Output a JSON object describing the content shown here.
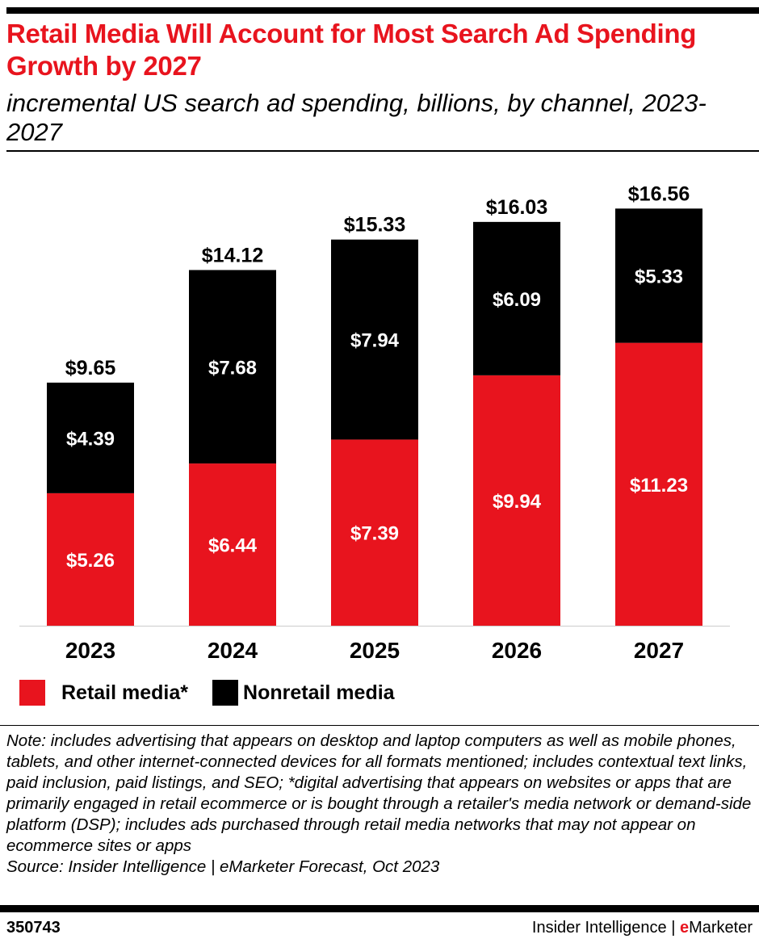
{
  "title": "Retail Media Will Account for Most Search Ad Spending Growth by 2027",
  "subtitle": "incremental US search ad spending, billions, by channel, 2023-2027",
  "colors": {
    "retail": "#e8141e",
    "nonretail": "#000000",
    "title": "#e8141e"
  },
  "chart_data": {
    "type": "bar",
    "stacked": true,
    "categories": [
      "2023",
      "2024",
      "2025",
      "2026",
      "2027"
    ],
    "series": [
      {
        "name": "Retail media*",
        "color": "#e8141e",
        "values": [
          5.26,
          6.44,
          7.39,
          9.94,
          11.23
        ],
        "labels": [
          "$5.26",
          "$6.44",
          "$7.39",
          "$9.94",
          "$11.23"
        ]
      },
      {
        "name": "Nonretail media",
        "color": "#000000",
        "values": [
          4.39,
          7.68,
          7.94,
          6.09,
          5.33
        ],
        "labels": [
          "$4.39",
          "$7.68",
          "$7.94",
          "$6.09",
          "$5.33"
        ]
      }
    ],
    "totals": [
      9.65,
      14.12,
      15.33,
      16.03,
      16.56
    ],
    "total_labels": [
      "$9.65",
      "$14.12",
      "$15.33",
      "$16.03",
      "$16.56"
    ],
    "ylim": [
      0,
      18
    ],
    "grid": false,
    "legend_position": "bottom-left"
  },
  "legend": {
    "retail": "Retail media*",
    "nonretail": "Nonretail media"
  },
  "note": "Note: includes advertising that appears on desktop and laptop computers as well as mobile phones, tablets, and other internet-connected devices for all formats mentioned; includes contextual text links, paid inclusion, paid listings, and SEO; *digital advertising that appears on websites or apps that are primarily engaged in retail ecommerce or is bought through a retailer's media network or demand-side platform (DSP); includes ads purchased through retail media networks that may not appear on ecommerce sites or apps",
  "source": "Source: Insider Intelligence | eMarketer Forecast, Oct 2023",
  "footer": {
    "id": "350743",
    "brand_prefix": "Insider Intelligence | ",
    "brand_e": "e",
    "brand_rest": "Marketer"
  }
}
